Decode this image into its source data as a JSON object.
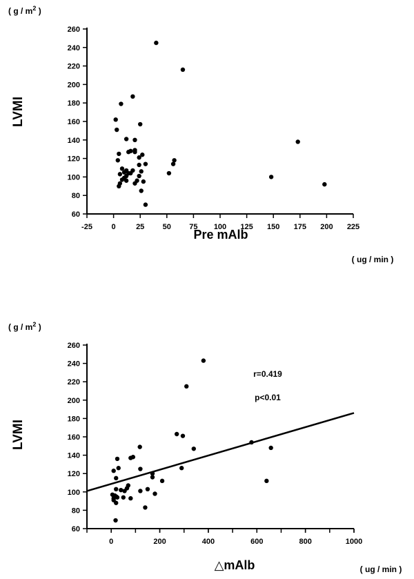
{
  "chart_data": [
    {
      "type": "scatter",
      "title": "",
      "ylabel": "LVMI",
      "yunit": "( g / m",
      "yunit_sup": "2",
      "yunit_close": " )",
      "xlabel": "Pre  mAlb",
      "xunit": "( ug / min )",
      "xlim": [
        -25,
        225
      ],
      "ylim": [
        60,
        260
      ],
      "xticks": [
        -25,
        0,
        25,
        50,
        75,
        100,
        125,
        150,
        175,
        200,
        225
      ],
      "yticks": [
        60,
        80,
        100,
        120,
        140,
        160,
        180,
        200,
        220,
        240,
        260
      ],
      "points": [
        [
          40,
          245
        ],
        [
          65,
          216
        ],
        [
          18,
          187
        ],
        [
          7,
          179
        ],
        [
          2,
          162
        ],
        [
          25,
          157
        ],
        [
          3,
          151
        ],
        [
          12,
          141
        ],
        [
          20,
          140
        ],
        [
          20,
          129
        ],
        [
          16,
          128
        ],
        [
          14,
          127
        ],
        [
          20,
          127
        ],
        [
          5,
          125
        ],
        [
          27,
          124
        ],
        [
          24,
          121
        ],
        [
          4,
          118
        ],
        [
          57,
          118
        ],
        [
          30,
          114
        ],
        [
          56,
          114
        ],
        [
          24,
          113
        ],
        [
          8,
          109
        ],
        [
          12,
          107
        ],
        [
          18,
          107
        ],
        [
          26,
          106
        ],
        [
          10,
          105
        ],
        [
          14,
          104
        ],
        [
          16,
          104
        ],
        [
          52,
          104
        ],
        [
          6,
          103
        ],
        [
          12,
          101
        ],
        [
          24,
          101
        ],
        [
          10,
          99
        ],
        [
          148,
          100
        ],
        [
          8,
          97
        ],
        [
          12,
          96
        ],
        [
          22,
          96
        ],
        [
          28,
          95
        ],
        [
          6,
          93
        ],
        [
          20,
          93
        ],
        [
          5,
          90
        ],
        [
          198,
          92
        ],
        [
          26,
          85
        ],
        [
          173,
          138
        ],
        [
          30,
          70
        ]
      ]
    },
    {
      "type": "scatter",
      "title": "",
      "ylabel": "LVMI",
      "yunit": "( g / m",
      "yunit_sup": "2",
      "yunit_close": " )",
      "xlabel": "△mAlb",
      "xunit": "( ug / min )",
      "xlim": [
        -100,
        1000
      ],
      "ylim": [
        60,
        260
      ],
      "xticks": [
        0,
        200,
        400,
        600,
        800,
        1000
      ],
      "xminor": [
        -100,
        0,
        100,
        200,
        300,
        400,
        500,
        600,
        700,
        800,
        900,
        1000
      ],
      "yticks": [
        60,
        80,
        100,
        120,
        140,
        160,
        180,
        200,
        220,
        240,
        260
      ],
      "annotations": [
        "r=0.419",
        "p<0.01"
      ],
      "fit_line": {
        "x": [
          -100,
          1000
        ],
        "y": [
          101,
          186
        ]
      },
      "points": [
        [
          380,
          243
        ],
        [
          310,
          215
        ],
        [
          270,
          163
        ],
        [
          295,
          161
        ],
        [
          578,
          154
        ],
        [
          658,
          148
        ],
        [
          340,
          147
        ],
        [
          118,
          149
        ],
        [
          25,
          136
        ],
        [
          80,
          137
        ],
        [
          90,
          138
        ],
        [
          10,
          123
        ],
        [
          30,
          126
        ],
        [
          120,
          125
        ],
        [
          290,
          126
        ],
        [
          170,
          120
        ],
        [
          170,
          116
        ],
        [
          20,
          115
        ],
        [
          210,
          112
        ],
        [
          640,
          112
        ],
        [
          70,
          107
        ],
        [
          65,
          104
        ],
        [
          20,
          103
        ],
        [
          40,
          102
        ],
        [
          55,
          101
        ],
        [
          120,
          101
        ],
        [
          150,
          103
        ],
        [
          5,
          97
        ],
        [
          15,
          96
        ],
        [
          20,
          95
        ],
        [
          10,
          93
        ],
        [
          25,
          94
        ],
        [
          50,
          94
        ],
        [
          80,
          93
        ],
        [
          180,
          98
        ],
        [
          10,
          91
        ],
        [
          20,
          88
        ],
        [
          140,
          83
        ],
        [
          18,
          69
        ]
      ]
    }
  ]
}
